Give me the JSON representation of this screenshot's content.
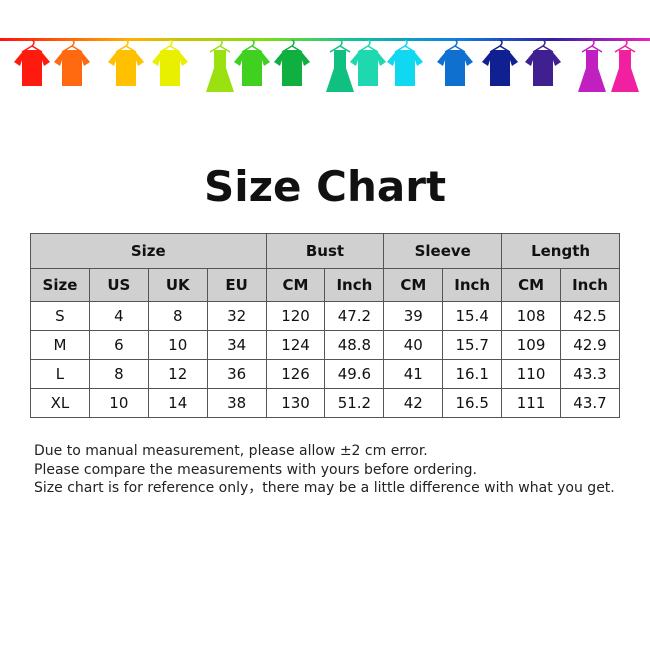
{
  "banner": {
    "colors": [
      "#ff1a10",
      "#ff6a10",
      "#ffc000",
      "#e8f000",
      "#9be010",
      "#40d020",
      "#10b040",
      "#10c080",
      "#20d8b0",
      "#10d8f0",
      "#1070d0",
      "#102090",
      "#402090",
      "#c020c0",
      "#f020a0"
    ]
  },
  "title": "Size Chart",
  "table": {
    "groups": [
      "Size",
      "Bust",
      "Sleeve",
      "Length"
    ],
    "columns": [
      "Size",
      "US",
      "UK",
      "EU",
      "CM",
      "Inch",
      "CM",
      "Inch",
      "CM",
      "Inch"
    ],
    "rows": [
      [
        "S",
        "4",
        "8",
        "32",
        "120",
        "47.2",
        "39",
        "15.4",
        "108",
        "42.5"
      ],
      [
        "M",
        "6",
        "10",
        "34",
        "124",
        "48.8",
        "40",
        "15.7",
        "109",
        "42.9"
      ],
      [
        "L",
        "8",
        "12",
        "36",
        "126",
        "49.6",
        "41",
        "16.1",
        "110",
        "43.3"
      ],
      [
        "XL",
        "10",
        "14",
        "38",
        "130",
        "51.2",
        "42",
        "16.5",
        "111",
        "43.7"
      ]
    ]
  },
  "notes": [
    "Due to manual measurement, please allow ±2 cm error.",
    "Please compare the measurements with yours before ordering.",
    "Size chart is for reference only，there may be a little difference with what you get."
  ]
}
